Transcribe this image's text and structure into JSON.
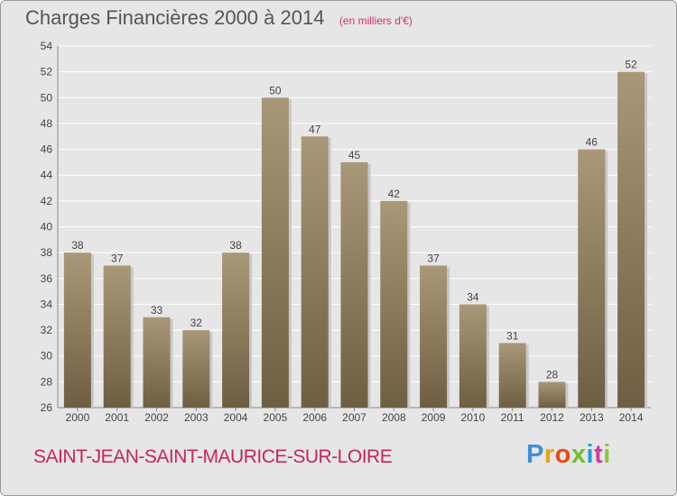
{
  "header": {
    "title": "Charges Financières 2000 à 2014",
    "subtitle": "(en milliers d'€)"
  },
  "footer": {
    "commune": "SAINT-JEAN-SAINT-MAURICE-SUR-LOIRE",
    "logo_text": "Proxiti"
  },
  "colors": {
    "background": "#e6e6e6",
    "bar_light": "#a89878",
    "bar_dark": "#6e5f43",
    "title": "#555555",
    "subtitle": "#cc3366",
    "commune": "#c8245c",
    "logo_letters": [
      "#3e8fd6",
      "#e8a317",
      "#e84a1a",
      "#6fbf2e",
      "#1e9fd6",
      "#d63aa0",
      "#8cc63f"
    ]
  },
  "chart_data": {
    "type": "bar",
    "title": "Charges Financières 2000 à 2014",
    "subtitle": "(en milliers d'€)",
    "categories": [
      "2000",
      "2001",
      "2002",
      "2003",
      "2004",
      "2005",
      "2006",
      "2007",
      "2008",
      "2009",
      "2010",
      "2011",
      "2012",
      "2013",
      "2014"
    ],
    "values": [
      38,
      37,
      33,
      32,
      38,
      50,
      47,
      45,
      42,
      37,
      34,
      31,
      28,
      46,
      52
    ],
    "ylim": [
      26,
      54
    ],
    "yticks": [
      26,
      28,
      30,
      32,
      34,
      36,
      38,
      40,
      42,
      44,
      46,
      48,
      50,
      52,
      54
    ],
    "grid": true,
    "data_labels": true
  }
}
